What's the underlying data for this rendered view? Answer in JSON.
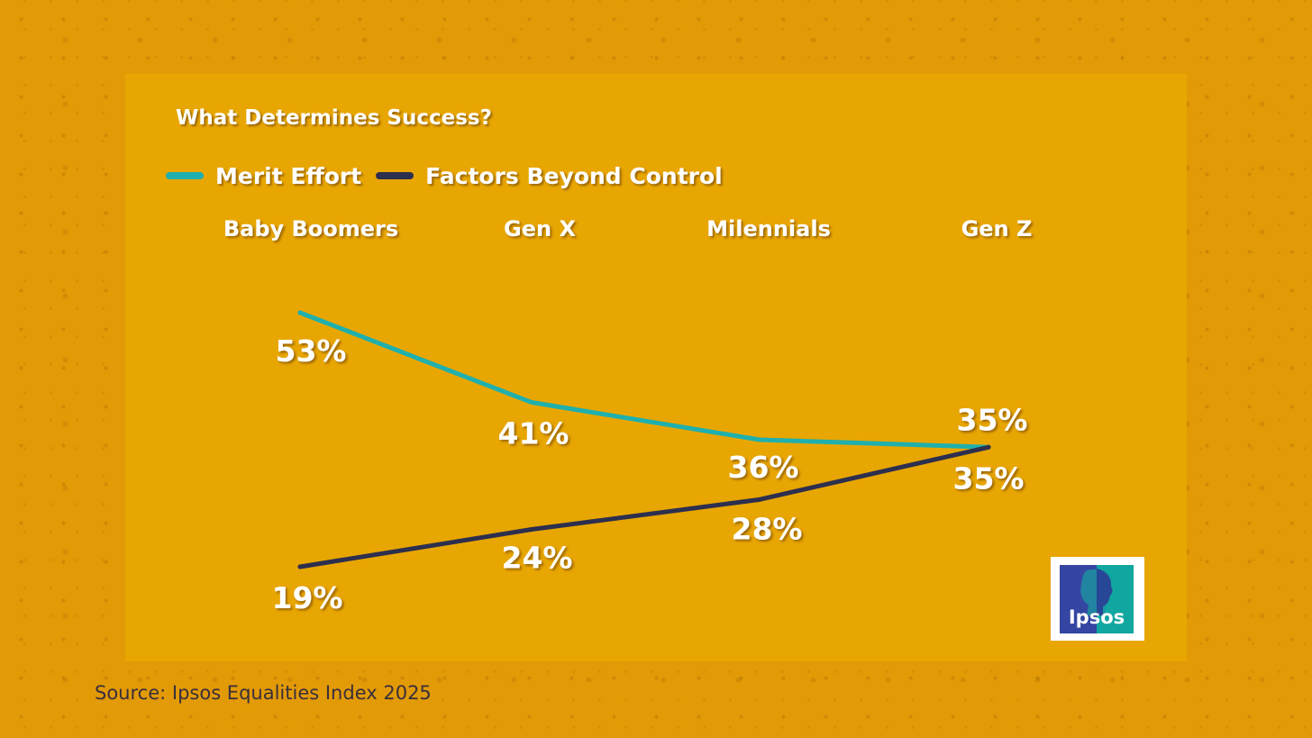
{
  "title": "What Determines Success?",
  "source": "Source: Ipsos Equalities Index 2025",
  "logo": {
    "text": "Ipsos",
    "icon": "ipsos-logo-icon"
  },
  "colors": {
    "background": "#e29a06",
    "panel": "#e8a602",
    "merit": "#1fb0ad",
    "beyond": "#2d2f4e",
    "text": "#ffffff"
  },
  "chart_data": {
    "type": "line",
    "title": "What Determines Success?",
    "categories": [
      "Baby Boomers",
      "Gen X",
      "Milennials",
      "Gen Z"
    ],
    "series": [
      {
        "name": "Merit Effort",
        "color": "#1fb0ad",
        "values": [
          53,
          41,
          36,
          35
        ],
        "labels": [
          "53%",
          "41%",
          "36%",
          "35%"
        ]
      },
      {
        "name": "Factors Beyond Control",
        "color": "#2d2f4e",
        "values": [
          19,
          24,
          28,
          35
        ],
        "labels": [
          "19%",
          "24%",
          "28%",
          "35%"
        ]
      }
    ],
    "ylim": [
      19,
      53
    ],
    "grid": false,
    "legend": "top-left",
    "xaxis_position": "top"
  }
}
